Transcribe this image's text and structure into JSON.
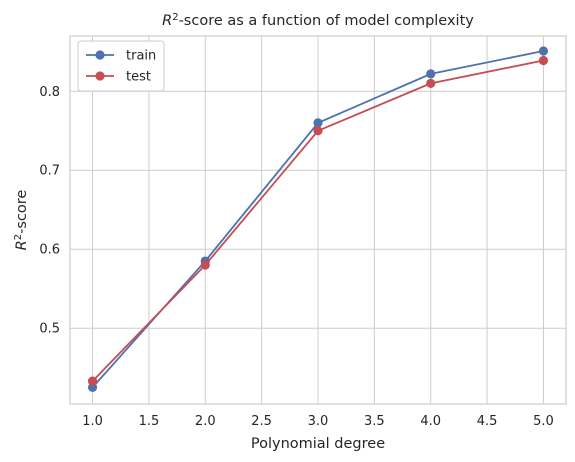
{
  "chart_data": {
    "type": "line",
    "title_base": "R",
    "title_sup": "2",
    "title_rest": "-score as a function of model complexity",
    "xlabel": "Polynomial degree",
    "ylabel_base": "R",
    "ylabel_sup": "2",
    "ylabel_rest": "-score",
    "xlim": [
      0.8,
      5.2
    ],
    "ylim": [
      0.404,
      0.87
    ],
    "xticks": [
      1.0,
      1.5,
      2.0,
      2.5,
      3.0,
      3.5,
      4.0,
      4.5,
      5.0
    ],
    "xtick_labels": [
      "1.0",
      "1.5",
      "2.0",
      "2.5",
      "3.0",
      "3.5",
      "4.0",
      "4.5",
      "5.0"
    ],
    "yticks": [
      0.5,
      0.6,
      0.7,
      0.8
    ],
    "ytick_labels": [
      "0.5",
      "0.6",
      "0.7",
      "0.8"
    ],
    "grid": true,
    "legend_position": "top-left",
    "x": [
      1,
      2,
      3,
      4,
      5
    ],
    "series": [
      {
        "name": "train",
        "color": "#4c72b0",
        "values": [
          0.425,
          0.585,
          0.76,
          0.822,
          0.851
        ]
      },
      {
        "name": "test",
        "color": "#c44e52",
        "values": [
          0.433,
          0.58,
          0.75,
          0.81,
          0.839
        ]
      }
    ]
  }
}
